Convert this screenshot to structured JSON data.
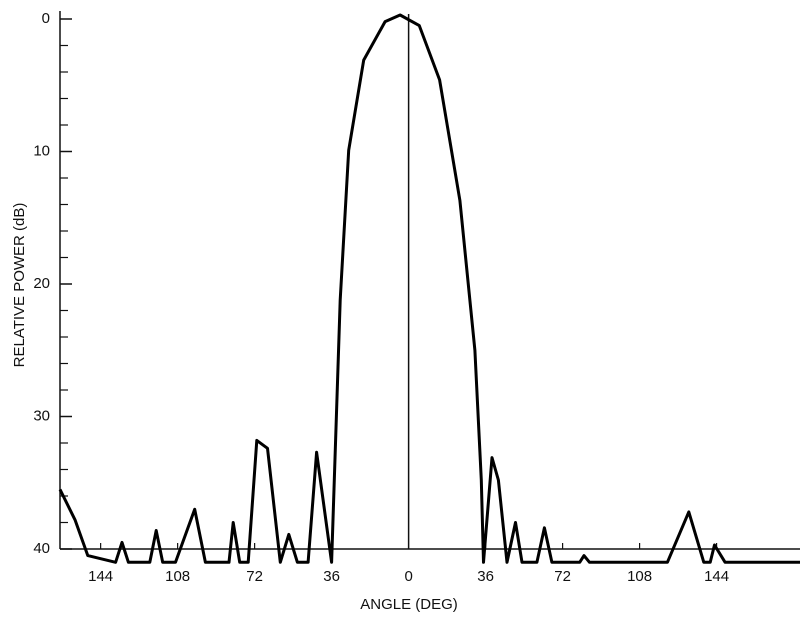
{
  "chart_data": {
    "type": "line",
    "ylabel": "RELATIVE POWER (dB)",
    "xlabel": "ANGLE (DEG)",
    "x": [
      -163,
      -156,
      -150,
      -137,
      -134,
      -131,
      -121,
      -118,
      -115,
      -109,
      -100,
      -95,
      -84,
      -82,
      -79,
      -75,
      -71,
      -66,
      -60,
      -56,
      -52,
      -47,
      -43,
      -36,
      -32,
      -28,
      -21,
      -11,
      -4,
      5,
      14.5,
      24,
      31,
      34,
      35,
      39,
      42,
      46,
      50,
      53,
      60,
      63.5,
      67,
      80,
      82,
      84.6,
      121,
      131,
      138,
      141,
      143,
      148,
      183
    ],
    "values": [
      35.5,
      37.8,
      40.5,
      41,
      39.5,
      41,
      41,
      38.6,
      41,
      41,
      37,
      41,
      41,
      38,
      41,
      41,
      31.8,
      32.4,
      41,
      38.9,
      41,
      41,
      32.7,
      41,
      21.2,
      9.9,
      3.1,
      0.2,
      -0.3,
      0.5,
      4.6,
      13.7,
      25,
      34.8,
      41,
      33.1,
      34.8,
      41,
      38,
      41,
      41,
      38.4,
      41,
      41,
      40.5,
      41,
      41,
      37.2,
      41,
      41,
      39.7,
      41,
      41
    ],
    "color": "#000000",
    "xlim": [
      -163,
      183
    ],
    "ylim": [
      0,
      40
    ],
    "y_inverted": true,
    "xticks": [
      {
        "value": -144,
        "label": "144"
      },
      {
        "value": -108,
        "label": "108"
      },
      {
        "value": -72,
        "label": "72"
      },
      {
        "value": -36,
        "label": "36"
      },
      0,
      36,
      72,
      108,
      144
    ],
    "yticks": [
      0,
      10,
      20,
      30,
      40
    ],
    "minor_yticks": [
      2,
      4,
      6,
      8,
      12,
      14,
      16,
      18,
      22,
      24,
      26,
      28,
      32,
      34,
      36,
      38
    ],
    "zero_line": true
  }
}
